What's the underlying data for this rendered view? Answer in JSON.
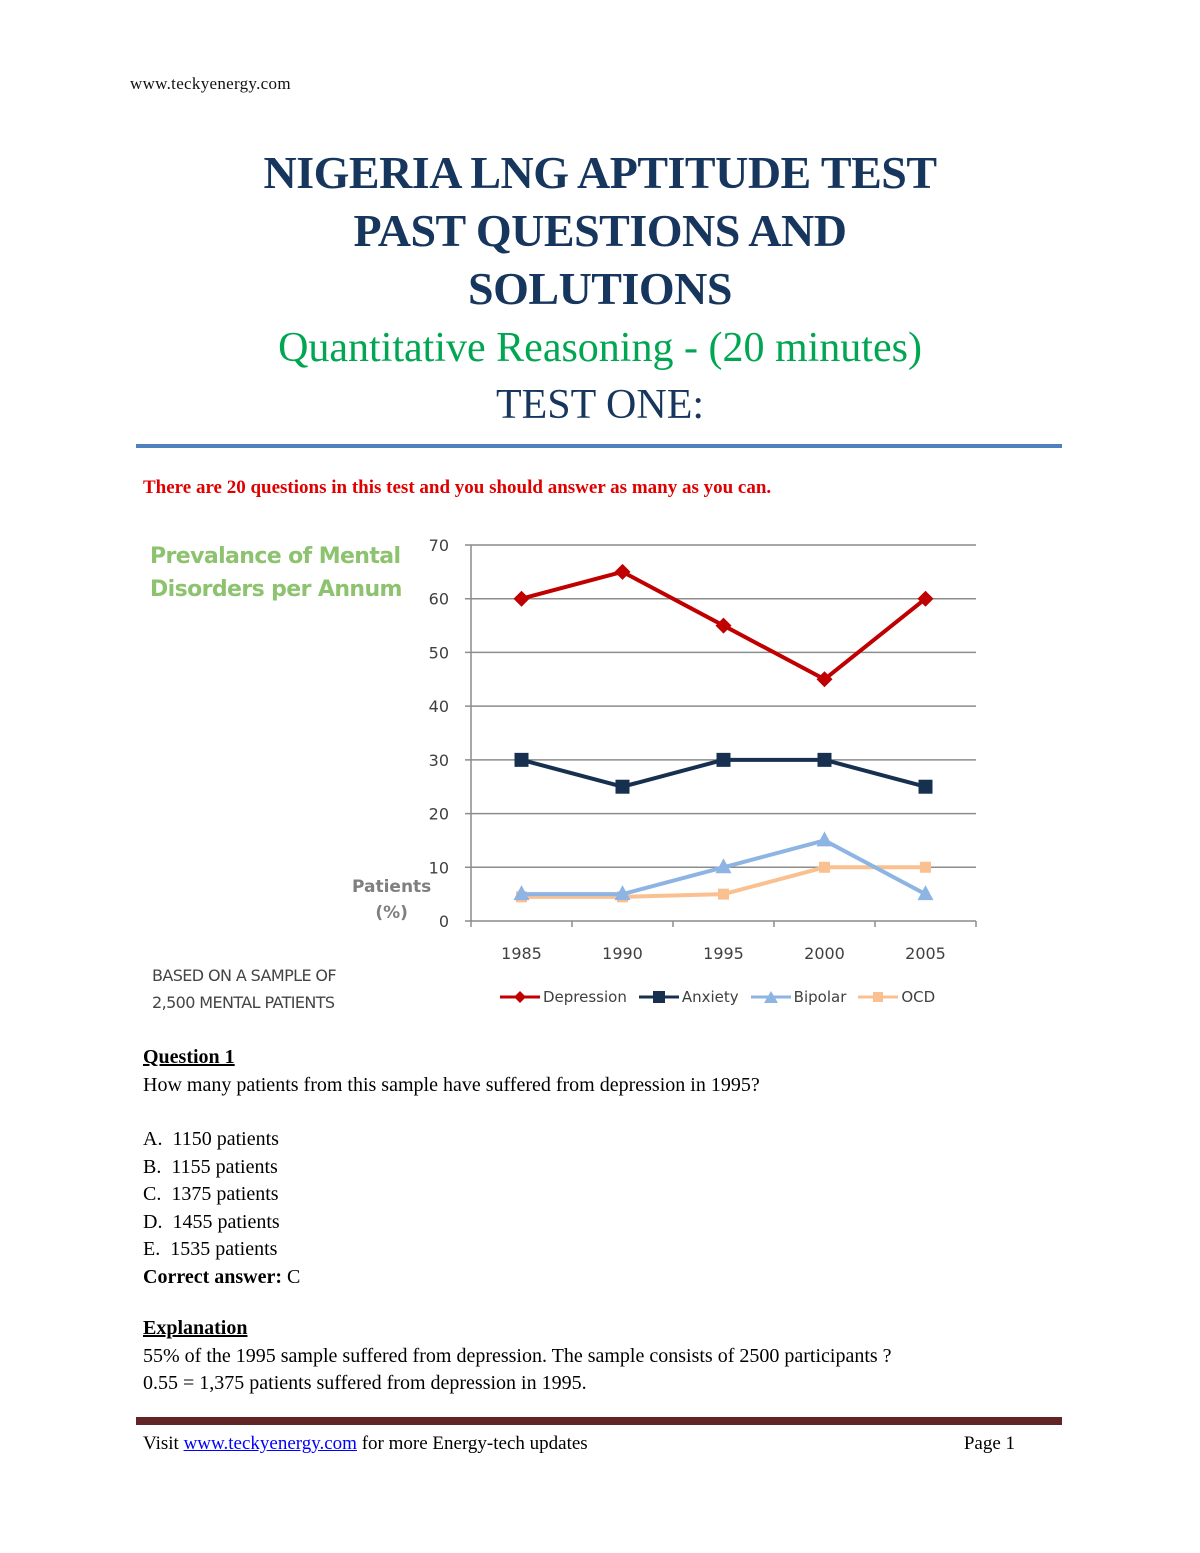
{
  "header": {
    "site": "www.teckyenergy.com"
  },
  "title": {
    "lines": [
      "NIGERIA LNG APTITUDE TEST",
      "PAST QUESTIONS AND",
      "SOLUTIONS"
    ],
    "subtitle": "Quantitative Reasoning - (20 minutes)",
    "test_label": "TEST ONE:"
  },
  "intro": "There are 20 questions in this test and you should answer as many as you can.",
  "colors": {
    "title": "#17365d",
    "subtitle": "#00a651",
    "intro": "#e00000",
    "top_rule": "#4f81bd",
    "footer_rule": "#632523",
    "link": "#0000ff"
  },
  "chart": {
    "title_lines": [
      "Prevalance of Mental",
      "Disorders per Annum"
    ],
    "ylabel_lines": [
      "Patients",
      "(%)"
    ],
    "note_lines": [
      "BASED ON A SAMPLE OF",
      "2,500 MENTAL PATIENTS"
    ]
  },
  "chart_data": {
    "type": "line",
    "title": "Prevalance of Mental Disorders per Annum",
    "xlabel": "",
    "ylabel": "Patients (%)",
    "categories": [
      "1985",
      "1990",
      "1995",
      "2000",
      "2005"
    ],
    "x": [
      1985,
      1990,
      1995,
      2000,
      2005
    ],
    "yticks": [
      0,
      10,
      20,
      30,
      40,
      50,
      60,
      70
    ],
    "ylim": [
      0,
      70
    ],
    "grid": true,
    "legend_position": "bottom",
    "annotation": "BASED ON A SAMPLE OF 2,500 MENTAL PATIENTS",
    "series": [
      {
        "name": "Depression",
        "values": [
          60,
          65,
          55,
          45,
          60
        ],
        "color": "#c00000",
        "marker": "diamond"
      },
      {
        "name": "Anxiety",
        "values": [
          30,
          25,
          30,
          30,
          25
        ],
        "color": "#17304f",
        "marker": "square"
      },
      {
        "name": "Bipolar",
        "values": [
          5,
          5,
          10,
          15,
          5
        ],
        "color": "#8eb4e3",
        "marker": "triangle"
      },
      {
        "name": "OCD",
        "values": [
          4.5,
          4.5,
          5,
          10,
          10
        ],
        "color": "#fac090",
        "marker": "square"
      }
    ]
  },
  "question": {
    "title": "Question 1",
    "text": "How many patients from this sample have suffered from depression in 1995?",
    "options": [
      {
        "letter": "A.",
        "text": " 1150 patients"
      },
      {
        "letter": "B.",
        "text": "1155 patients"
      },
      {
        "letter": "C.",
        "text": "1375 patients"
      },
      {
        "letter": "D.",
        "text": "1455 patients"
      },
      {
        "letter": "E.",
        "text": "1535 patients"
      }
    ],
    "correct_label": "Correct answer:",
    "correct_value": "C"
  },
  "explanation": {
    "title": "Explanation",
    "lines": [
      "55% of the 1995 sample suffered from depression. The sample consists of 2500 participants ?",
      "0.55 = 1,375 patients suffered from depression in 1995."
    ]
  },
  "footer": {
    "prefix": "Visit ",
    "link_text": "www.teckyenergy.com",
    "suffix": " for more Energy-tech updates",
    "page": "Page 1"
  }
}
